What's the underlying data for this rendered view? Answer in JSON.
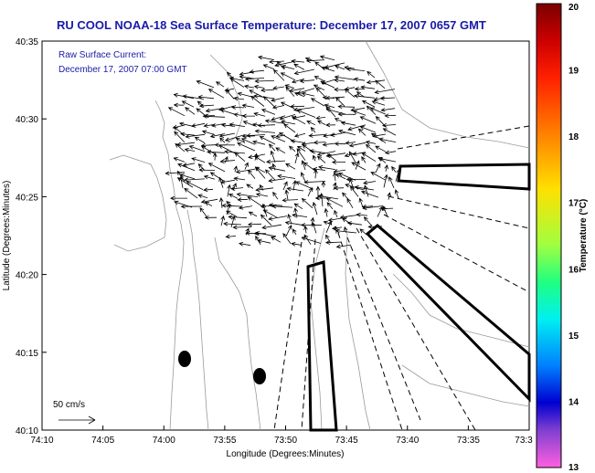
{
  "title": "RU COOL  NOAA-18  Sea Surface Temperature:  December 17, 2007 0657 GMT",
  "annotation": {
    "line1": "Raw Surface Current:",
    "line2": "December 17, 2007 07:00 GMT"
  },
  "scale_label": "50 cm/s",
  "x_axis": {
    "label": "Longitude (Degrees:Minutes)",
    "ticks": [
      "74:10",
      "74:05",
      "74:00",
      "73:55",
      "73:50",
      "73:45",
      "73:40",
      "73:35",
      "73:3"
    ]
  },
  "y_axis": {
    "label": "Latitude (Degrees:Minutes)",
    "ticks": [
      "40:35",
      "40:30",
      "40:25",
      "40:20",
      "40:15",
      "40:10"
    ]
  },
  "colorbar": {
    "label": "Temperature (°C)",
    "min": 13,
    "max": 20,
    "ticks": [
      "20",
      "19",
      "18",
      "17",
      "16",
      "15",
      "14",
      "13"
    ]
  },
  "colors": {
    "title": "#1a1aa8",
    "annotation": "#1a1aa8",
    "contour": "#9a9a9a",
    "vector": "#000000"
  }
}
